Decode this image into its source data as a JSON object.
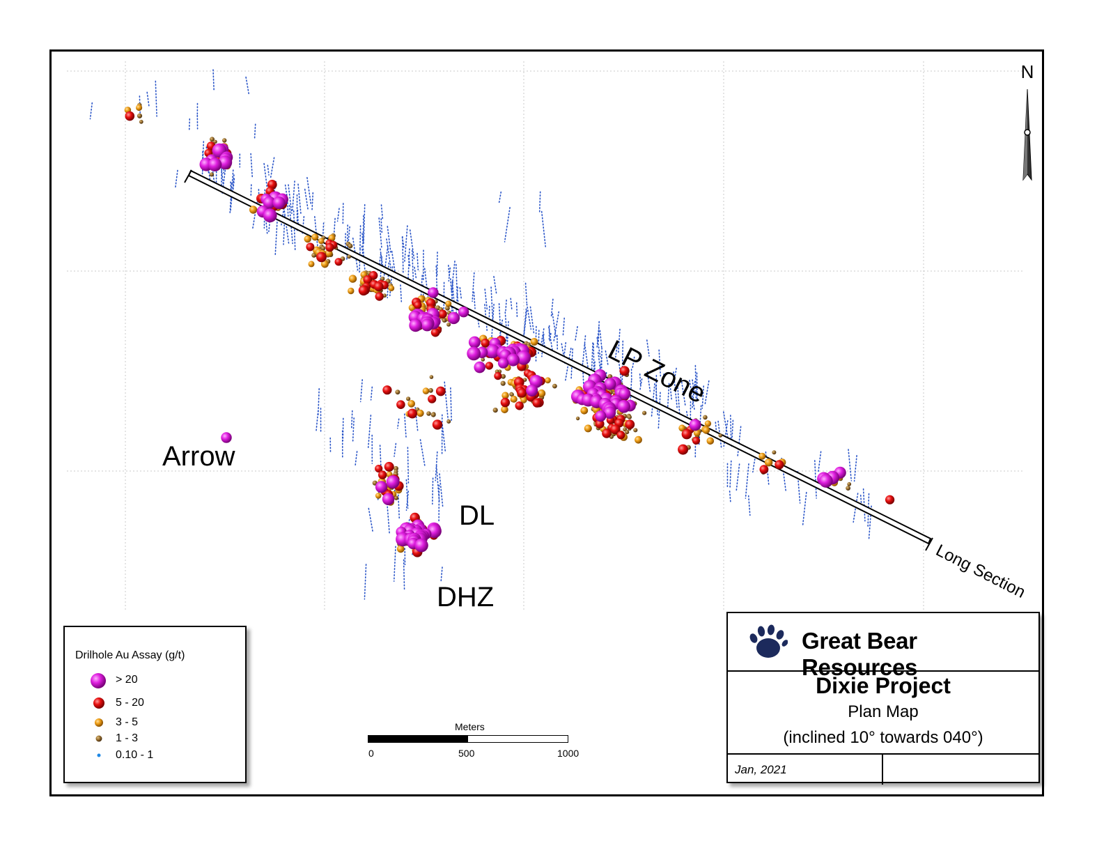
{
  "colors": {
    "gt20": "#e020e0",
    "r5_20": "#e81010",
    "r3_5": "#f0a018",
    "r1_3": "#9a7030",
    "r01_1": "#2a55c8",
    "paw": "#1c2a5c"
  },
  "labels": {
    "lp_zone": "LP Zone",
    "arrow": "Arrow",
    "dl": "DL",
    "dhz": "DHZ",
    "long_section": "Long Section",
    "north": "N"
  },
  "legend": {
    "title": "Drilhole Au Assay (g/t)",
    "items": [
      {
        "label": "> 20",
        "class": "gt20"
      },
      {
        "label": "5 - 20",
        "class": "r5_20"
      },
      {
        "label": "3 - 5",
        "class": "r3_5"
      },
      {
        "label": "1 - 3",
        "class": "r1_3"
      },
      {
        "label": "0.10 - 1",
        "class": "r01_1"
      }
    ]
  },
  "scale": {
    "title": "Meters",
    "ticks": [
      "0",
      "500",
      "1000"
    ]
  },
  "title_block": {
    "company": "Great Bear Resources",
    "project": "Dixie Project",
    "map_type": "Plan Map",
    "inclination": "(inclined 10° towards 040°)",
    "date": "Jan, 2021",
    "logo_icon": "bear-paw-icon"
  }
}
